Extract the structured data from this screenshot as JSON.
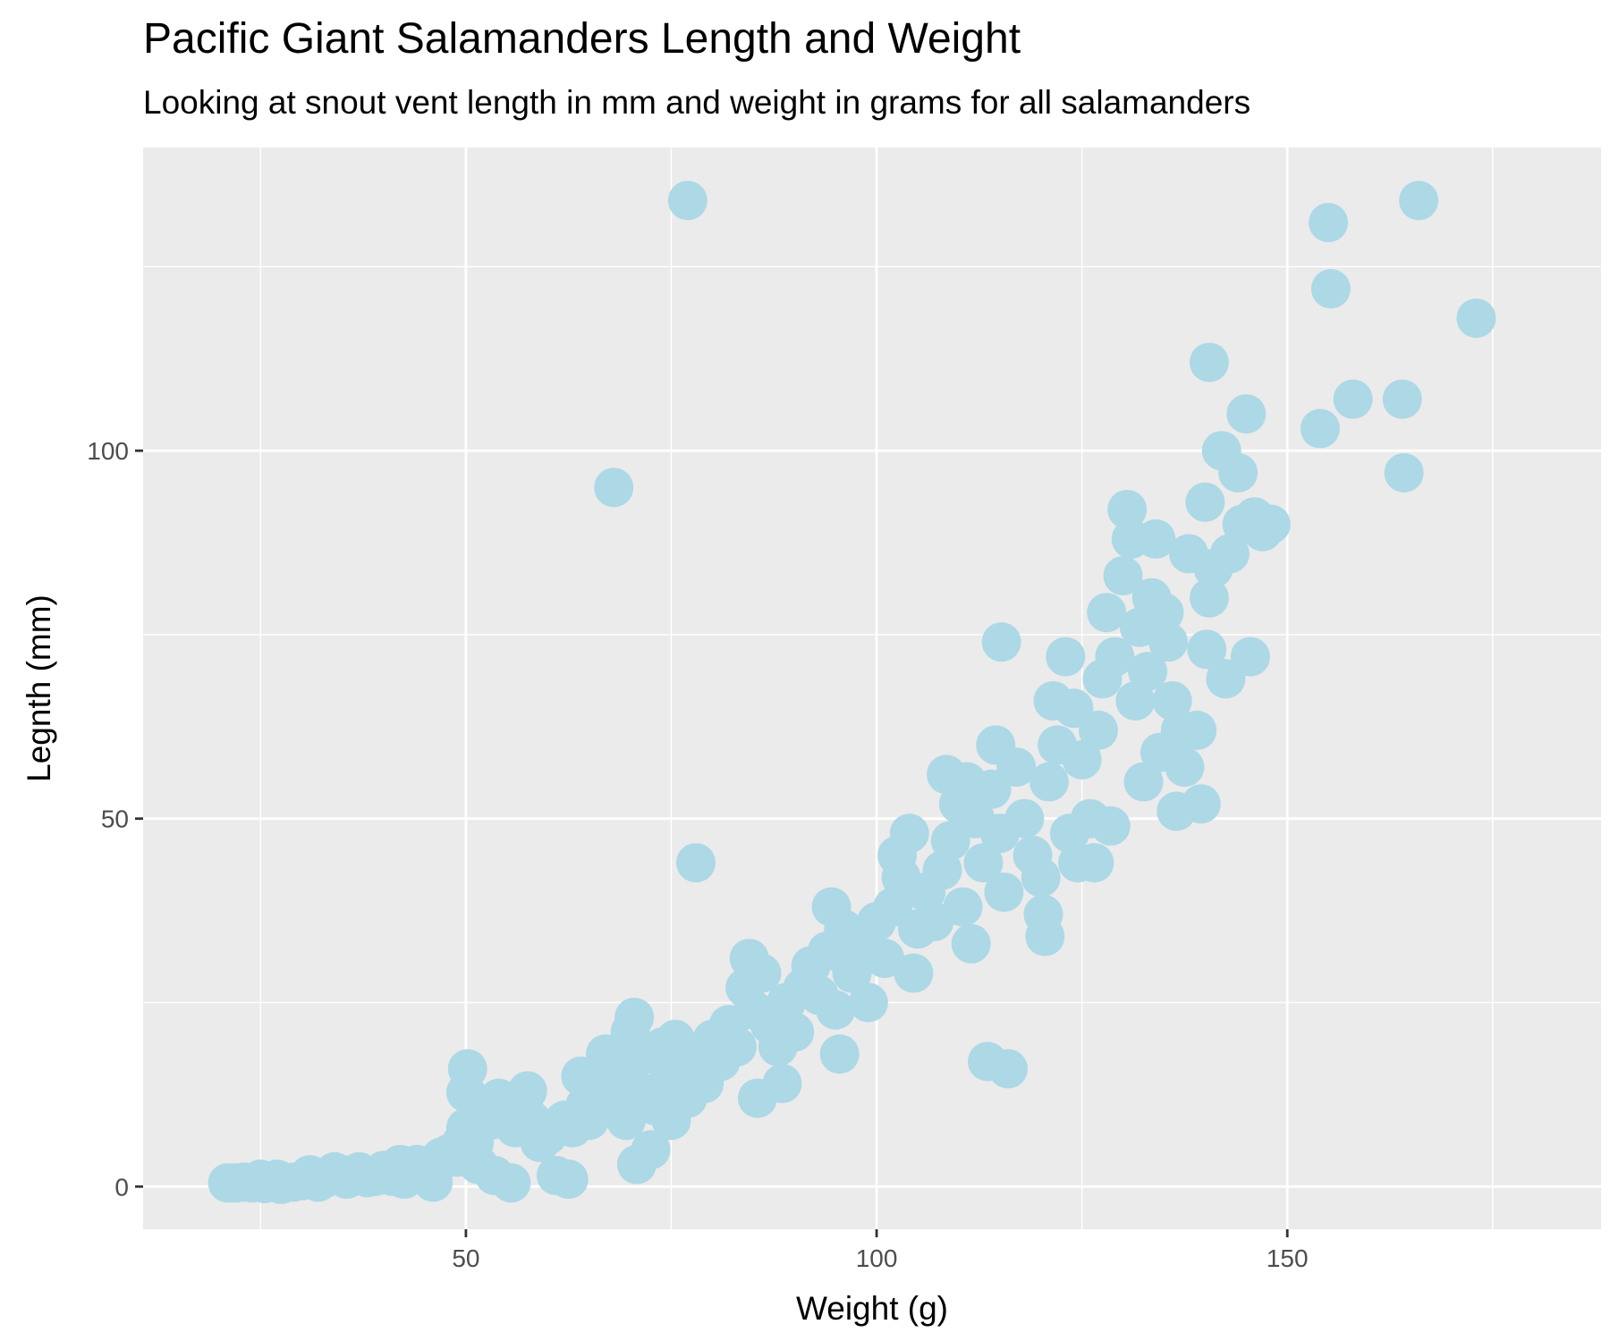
{
  "chart_data": {
    "type": "scatter",
    "title": "Pacific Giant Salamanders Length and Weight",
    "subtitle": "Looking at snout vent length in mm and weight in grams for all salamanders",
    "xlabel": "Weight (g)",
    "ylabel": "Legnth (mm)",
    "xlim": [
      10.7,
      188.2
    ],
    "ylim": [
      -5.8,
      141.2
    ],
    "x_ticks": [
      50,
      100,
      150
    ],
    "y_ticks": [
      0,
      50,
      100
    ],
    "grid": true,
    "legend": "none",
    "colors": {
      "panel": "#ebebeb",
      "grid": "#ffffff",
      "point": "#add8e6",
      "tick": "#333333"
    },
    "series": [
      {
        "points": [
          [
            21,
            0.5
          ],
          [
            22,
            0.5
          ],
          [
            23,
            0.6
          ],
          [
            24,
            0.5
          ],
          [
            25,
            1
          ],
          [
            25.5,
            0.4
          ],
          [
            27,
            1
          ],
          [
            27.5,
            0.3
          ],
          [
            29,
            0.6
          ],
          [
            30,
            0.8
          ],
          [
            31,
            1.6
          ],
          [
            32,
            0.6
          ],
          [
            33,
            1.2
          ],
          [
            34,
            2
          ],
          [
            35,
            1.6
          ],
          [
            35.5,
            1
          ],
          [
            37,
            2
          ],
          [
            38,
            1.2
          ],
          [
            39,
            1.4
          ],
          [
            40,
            2.2
          ],
          [
            41,
            1.4
          ],
          [
            42,
            3
          ],
          [
            42.5,
            1
          ],
          [
            43,
            2
          ],
          [
            44,
            3
          ],
          [
            45,
            2.6
          ],
          [
            46,
            0.6
          ],
          [
            46.5,
            3
          ],
          [
            47,
            4
          ],
          [
            48,
            4.5
          ],
          [
            49,
            4
          ],
          [
            49.5,
            6
          ],
          [
            50,
            8
          ],
          [
            50.2,
            16
          ],
          [
            50,
            12.8
          ],
          [
            51,
            6
          ],
          [
            51.5,
            3
          ],
          [
            52,
            11
          ],
          [
            53,
            9
          ],
          [
            53.5,
            1.5
          ],
          [
            54,
            12
          ],
          [
            55,
            9
          ],
          [
            55.5,
            0.5
          ],
          [
            56,
            8
          ],
          [
            57,
            11
          ],
          [
            57.5,
            13
          ],
          [
            58,
            9
          ],
          [
            59,
            6
          ],
          [
            60,
            7
          ],
          [
            61,
            1.5
          ],
          [
            62,
            9
          ],
          [
            62.5,
            1
          ],
          [
            63,
            8
          ],
          [
            64,
            15
          ],
          [
            64.5,
            11
          ],
          [
            65,
            9
          ],
          [
            66,
            13
          ],
          [
            67,
            18
          ],
          [
            67.5,
            15
          ],
          [
            68,
            11
          ],
          [
            69,
            16
          ],
          [
            69.5,
            9
          ],
          [
            70,
            21
          ],
          [
            70.5,
            23
          ],
          [
            70.8,
            3
          ],
          [
            71,
            13
          ],
          [
            72,
            18
          ],
          [
            72.5,
            5
          ],
          [
            73,
            11
          ],
          [
            74,
            19
          ],
          [
            74.5,
            14
          ],
          [
            75,
            9
          ],
          [
            75.5,
            20
          ],
          [
            76,
            16
          ],
          [
            77,
            12
          ],
          [
            78,
            18
          ],
          [
            79,
            14
          ],
          [
            80,
            20
          ],
          [
            81,
            17
          ],
          [
            82,
            22
          ],
          [
            83,
            19
          ],
          [
            84,
            27
          ],
          [
            84.5,
            31
          ],
          [
            85,
            24
          ],
          [
            85.5,
            12
          ],
          [
            86,
            29
          ],
          [
            87,
            22
          ],
          [
            88,
            19
          ],
          [
            88.5,
            14
          ],
          [
            89,
            25
          ],
          [
            90,
            21
          ],
          [
            91,
            27
          ],
          [
            92,
            30
          ],
          [
            93,
            26
          ],
          [
            94,
            32
          ],
          [
            94.5,
            38
          ],
          [
            95,
            24
          ],
          [
            95.5,
            18
          ],
          [
            96,
            35
          ],
          [
            97,
            29
          ],
          [
            98,
            33
          ],
          [
            99,
            25
          ],
          [
            100,
            36
          ],
          [
            101,
            31
          ],
          [
            102,
            38
          ],
          [
            102.5,
            45
          ],
          [
            103,
            42
          ],
          [
            104,
            48
          ],
          [
            104.5,
            29
          ],
          [
            105,
            35
          ],
          [
            106,
            40
          ],
          [
            107,
            36
          ],
          [
            108,
            43
          ],
          [
            108.5,
            56
          ],
          [
            109,
            47
          ],
          [
            110,
            52
          ],
          [
            110.5,
            38
          ],
          [
            111,
            55
          ],
          [
            111.5,
            33
          ],
          [
            112,
            50
          ],
          [
            113,
            44
          ],
          [
            113.5,
            17
          ],
          [
            114,
            54
          ],
          [
            114.5,
            60
          ],
          [
            115,
            48
          ],
          [
            115.2,
            74
          ],
          [
            115.5,
            40
          ],
          [
            116,
            16
          ],
          [
            117,
            57
          ],
          [
            118,
            50
          ],
          [
            119,
            45
          ],
          [
            120,
            42
          ],
          [
            120.3,
            37
          ],
          [
            120.5,
            34
          ],
          [
            121,
            55
          ],
          [
            121.5,
            66
          ],
          [
            122,
            60
          ],
          [
            123,
            72
          ],
          [
            123.5,
            48
          ],
          [
            124,
            65
          ],
          [
            124.5,
            44
          ],
          [
            125,
            58
          ],
          [
            126,
            50
          ],
          [
            126.5,
            44
          ],
          [
            127,
            62
          ],
          [
            127.5,
            69
          ],
          [
            128,
            78
          ],
          [
            128.5,
            49
          ],
          [
            129,
            72
          ],
          [
            130,
            83
          ],
          [
            130.5,
            92
          ],
          [
            131,
            88
          ],
          [
            131.5,
            66
          ],
          [
            132,
            76
          ],
          [
            132.5,
            55
          ],
          [
            133,
            70
          ],
          [
            133.5,
            80
          ],
          [
            134,
            88
          ],
          [
            134.5,
            59
          ],
          [
            135,
            78
          ],
          [
            135.5,
            74
          ],
          [
            136,
            66
          ],
          [
            136.5,
            51
          ],
          [
            137,
            62
          ],
          [
            137.5,
            57
          ],
          [
            138,
            86
          ],
          [
            139,
            62
          ],
          [
            139.5,
            52
          ],
          [
            140,
            93
          ],
          [
            140.5,
            80
          ],
          [
            140.2,
            73
          ],
          [
            140.5,
            112
          ],
          [
            141,
            84
          ],
          [
            142,
            100
          ],
          [
            142.5,
            69
          ],
          [
            143,
            86
          ],
          [
            144,
            97
          ],
          [
            144.5,
            90
          ],
          [
            145,
            105
          ],
          [
            145.5,
            72
          ],
          [
            146,
            91
          ],
          [
            147,
            89
          ],
          [
            148,
            90
          ],
          [
            154,
            103
          ],
          [
            155,
            131
          ],
          [
            155.3,
            122
          ],
          [
            158,
            107
          ],
          [
            164,
            107
          ],
          [
            164.2,
            97
          ],
          [
            166,
            134
          ],
          [
            173,
            118
          ],
          [
            77,
            134
          ],
          [
            68,
            95
          ],
          [
            78,
            44
          ]
        ]
      }
    ]
  }
}
